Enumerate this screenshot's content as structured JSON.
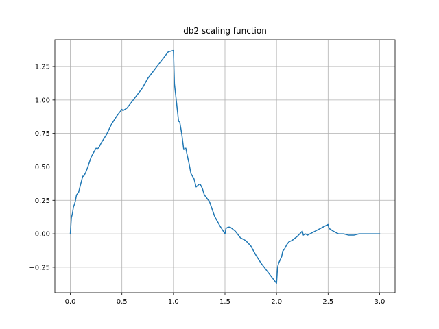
{
  "chart_data": {
    "type": "line",
    "title": "db2 scaling function",
    "xlabel": "",
    "ylabel": "",
    "xlim": [
      -0.15,
      3.15
    ],
    "ylim": [
      -0.44,
      1.45
    ],
    "xticks": [
      0.0,
      0.5,
      1.0,
      1.5,
      2.0,
      2.5,
      3.0
    ],
    "xtick_labels": [
      "0.0",
      "0.5",
      "1.0",
      "1.5",
      "2.0",
      "2.5",
      "3.0"
    ],
    "yticks": [
      -0.25,
      0.0,
      0.25,
      0.5,
      0.75,
      1.0,
      1.25
    ],
    "ytick_labels": [
      "−0.25",
      "0.00",
      "0.25",
      "0.50",
      "0.75",
      "1.00",
      "1.25"
    ],
    "grid": true,
    "series": [
      {
        "color": "#1f77b4",
        "x": [
          0.0,
          0.01,
          0.02,
          0.03,
          0.04,
          0.05,
          0.06,
          0.08,
          0.1,
          0.12,
          0.13,
          0.15,
          0.17,
          0.2,
          0.22,
          0.25,
          0.26,
          0.28,
          0.3,
          0.35,
          0.4,
          0.45,
          0.5,
          0.51,
          0.55,
          0.6,
          0.65,
          0.7,
          0.75,
          0.8,
          0.85,
          0.9,
          0.95,
          1.0,
          1.01,
          1.02,
          1.03,
          1.05,
          1.06,
          1.08,
          1.1,
          1.12,
          1.13,
          1.15,
          1.17,
          1.2,
          1.22,
          1.25,
          1.26,
          1.28,
          1.3,
          1.35,
          1.4,
          1.45,
          1.5,
          1.51,
          1.53,
          1.55,
          1.6,
          1.65,
          1.7,
          1.75,
          1.8,
          1.85,
          1.9,
          1.95,
          2.0,
          2.01,
          2.02,
          2.05,
          2.06,
          2.08,
          2.1,
          2.12,
          2.15,
          2.2,
          2.25,
          2.26,
          2.28,
          2.3,
          2.35,
          2.4,
          2.45,
          2.5,
          2.51,
          2.55,
          2.6,
          2.65,
          2.7,
          2.75,
          2.8,
          2.85,
          2.9,
          2.95,
          3.0
        ],
        "y": [
          0.0,
          0.12,
          0.15,
          0.2,
          0.22,
          0.25,
          0.29,
          0.31,
          0.37,
          0.43,
          0.43,
          0.46,
          0.5,
          0.57,
          0.6,
          0.64,
          0.63,
          0.65,
          0.68,
          0.74,
          0.82,
          0.88,
          0.93,
          0.92,
          0.94,
          0.99,
          1.04,
          1.09,
          1.16,
          1.21,
          1.26,
          1.31,
          1.36,
          1.37,
          1.12,
          1.05,
          0.98,
          0.84,
          0.84,
          0.75,
          0.63,
          0.64,
          0.6,
          0.53,
          0.45,
          0.41,
          0.35,
          0.37,
          0.37,
          0.34,
          0.29,
          0.24,
          0.13,
          0.06,
          0.0,
          0.04,
          0.05,
          0.05,
          0.02,
          -0.03,
          -0.05,
          -0.09,
          -0.16,
          -0.22,
          -0.27,
          -0.32,
          -0.37,
          -0.25,
          -0.22,
          -0.17,
          -0.13,
          -0.11,
          -0.08,
          -0.06,
          -0.05,
          -0.02,
          0.02,
          -0.01,
          0.0,
          -0.01,
          0.01,
          0.03,
          0.05,
          0.07,
          0.04,
          0.02,
          0.0,
          0.0,
          -0.01,
          -0.01,
          0.0,
          0.0,
          0.0,
          0.0,
          0.0
        ]
      }
    ]
  }
}
